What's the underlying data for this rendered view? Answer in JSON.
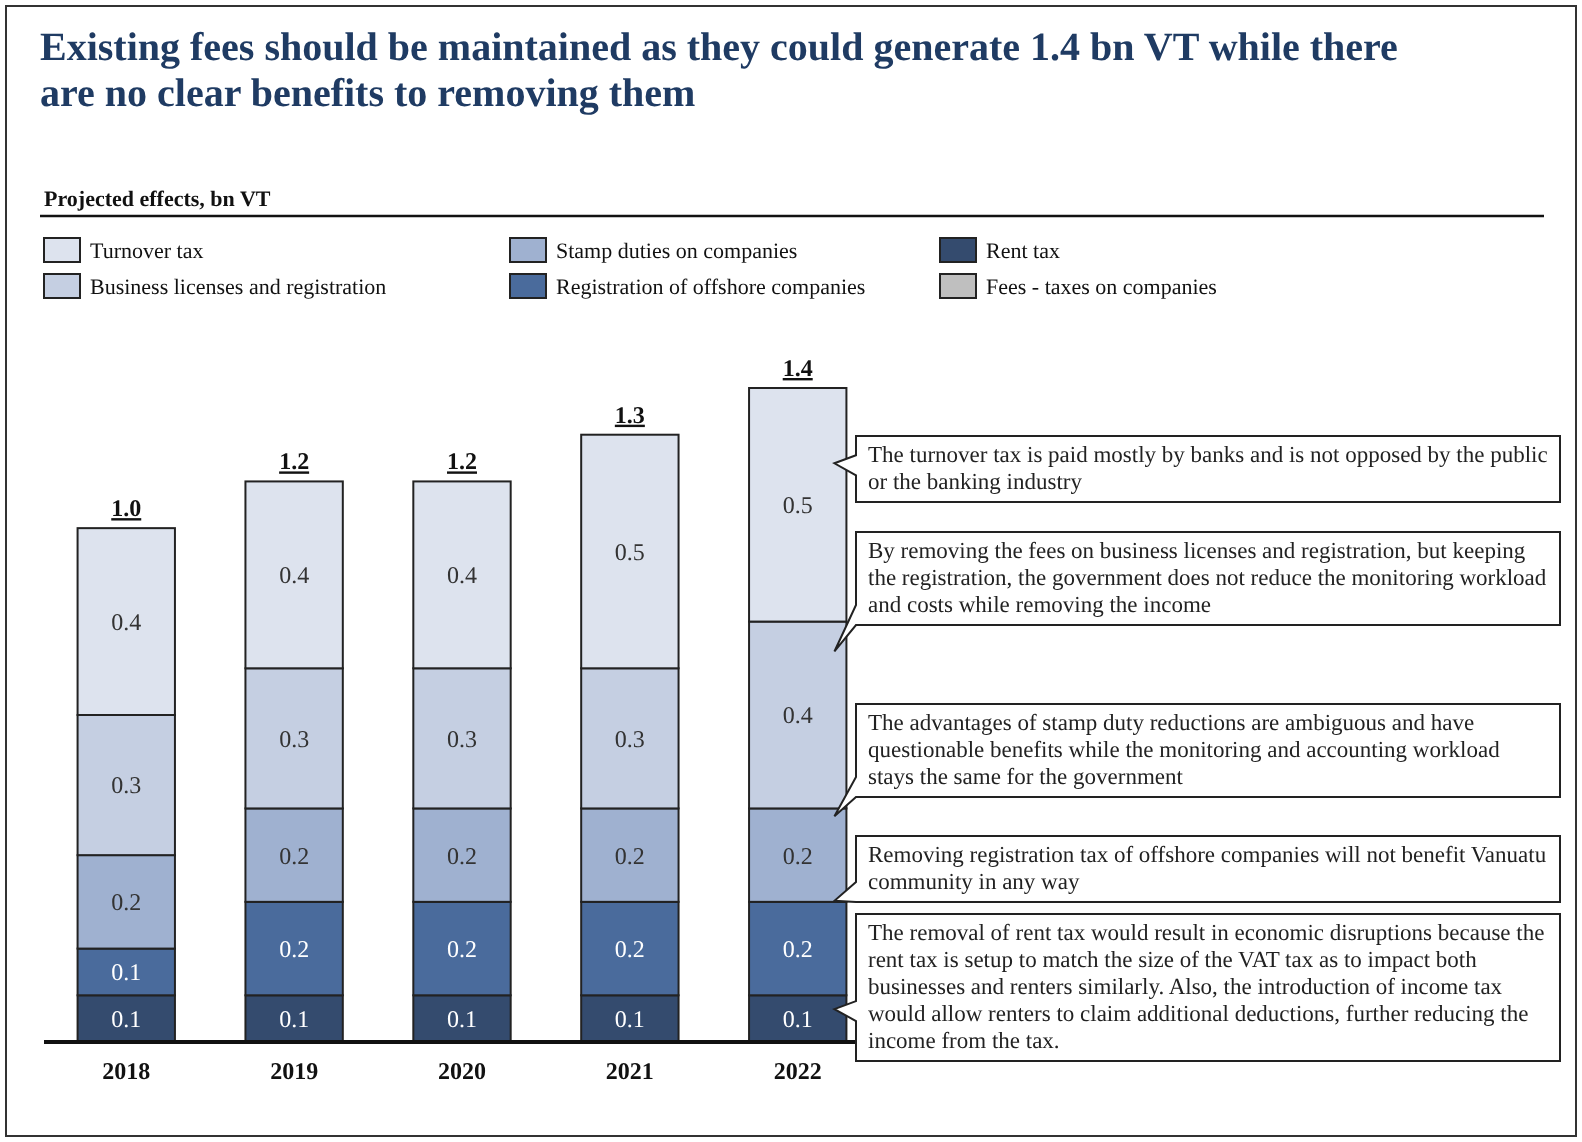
{
  "chart_data": {
    "type": "bar",
    "stacked": true,
    "title": "Existing fees should be maintained as they could generate 1.4 bn VT while there are no clear benefits to removing them",
    "subtitle": "Projected effects, bn VT",
    "categories": [
      "2018",
      "2019",
      "2020",
      "2021",
      "2022"
    ],
    "legend": "top",
    "data_labels": true,
    "series": [
      {
        "name": "Fees - taxes on companies",
        "color": "#bfbfbf",
        "values": [
          null,
          null,
          null,
          null,
          null
        ]
      },
      {
        "name": "Rent tax",
        "color": "#344b6e",
        "values": [
          0.1,
          0.1,
          0.1,
          0.1,
          0.1
        ]
      },
      {
        "name": "Registration of offshore companies",
        "color": "#4a6b9c",
        "values": [
          0.1,
          0.2,
          0.2,
          0.2,
          0.2
        ]
      },
      {
        "name": "Stamp duties on companies",
        "color": "#9fb1d0",
        "values": [
          0.2,
          0.2,
          0.2,
          0.2,
          0.2
        ]
      },
      {
        "name": "Business licenses and registration",
        "color": "#c5cfe2",
        "values": [
          0.3,
          0.3,
          0.3,
          0.3,
          0.4
        ]
      },
      {
        "name": "Turnover tax",
        "color": "#dde3ee",
        "values": [
          0.4,
          0.4,
          0.4,
          0.5,
          0.5
        ]
      }
    ],
    "totals": [
      "1.0",
      "1.2",
      "1.2",
      "1.3",
      "1.4"
    ],
    "annotations": [
      "The turnover tax is paid mostly by banks and is not opposed by the public or the banking industry",
      "By removing the fees on business licenses and registration, but keeping the registration, the government does not reduce the monitoring workload and costs while removing the income",
      "The advantages of stamp duty reductions are ambiguous and have questionable benefits while the monitoring and accounting workload stays the same for the government",
      "Removing registration tax of offshore companies will not benefit Vanuatu community in any way",
      "The removal of rent tax would result in economic disruptions because the rent tax is setup to match the size of the VAT tax as to impact both businesses and renters similarly. Also, the introduction of income tax would allow renters to claim additional deductions, further reducing the income from the tax."
    ]
  }
}
